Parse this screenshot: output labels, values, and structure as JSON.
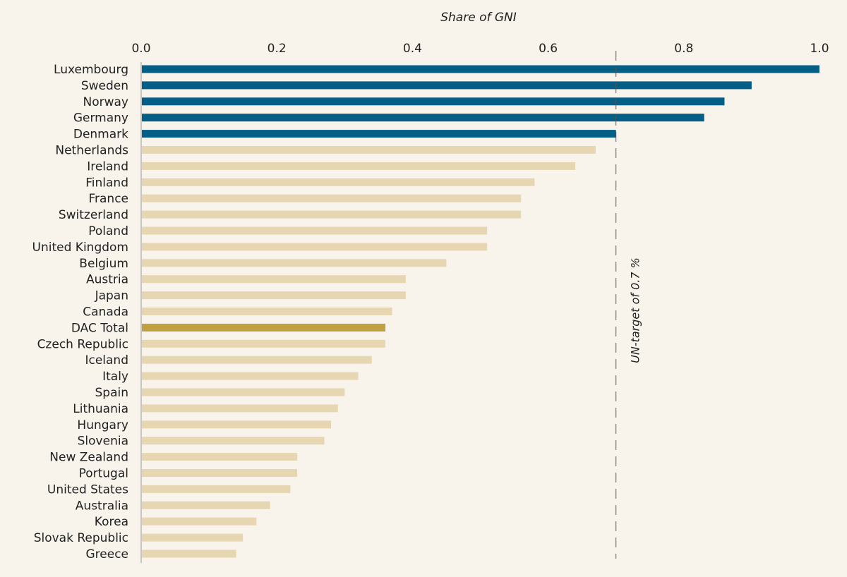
{
  "chart_data": {
    "type": "bar",
    "orientation": "horizontal",
    "title": "",
    "xlabel": "Share of GNI",
    "ylabel": "",
    "xlim": [
      0,
      1.0
    ],
    "xticks": [
      0.0,
      0.2,
      0.4,
      0.6,
      0.8,
      1.0
    ],
    "xtick_labels": [
      "0.0",
      "0.2",
      "0.4",
      "0.6",
      "0.8",
      "1.0"
    ],
    "xaxis_position": "top",
    "grid": false,
    "categories": [
      "Luxembourg",
      "Sweden",
      "Norway",
      "Germany",
      "Denmark",
      "Netherlands",
      "Ireland",
      "Finland",
      "France",
      "Switzerland",
      "Poland",
      "United Kingdom",
      "Belgium",
      "Austria",
      "Japan",
      "Canada",
      "DAC Total",
      "Czech Republic",
      "Iceland",
      "Italy",
      "Spain",
      "Lithuania",
      "Hungary",
      "Slovenia",
      "New Zealand",
      "Portugal",
      "United States",
      "Australia",
      "Korea",
      "Slovak Republic",
      "Greece"
    ],
    "values": [
      1.0,
      0.9,
      0.86,
      0.83,
      0.7,
      0.67,
      0.64,
      0.58,
      0.56,
      0.56,
      0.51,
      0.51,
      0.45,
      0.39,
      0.39,
      0.37,
      0.36,
      0.36,
      0.34,
      0.32,
      0.3,
      0.29,
      0.28,
      0.27,
      0.23,
      0.23,
      0.22,
      0.19,
      0.17,
      0.15,
      0.14
    ],
    "groups": [
      "above_target",
      "above_target",
      "above_target",
      "above_target",
      "above_target",
      "below_target",
      "below_target",
      "below_target",
      "below_target",
      "below_target",
      "below_target",
      "below_target",
      "below_target",
      "below_target",
      "below_target",
      "below_target",
      "dac_total",
      "below_target",
      "below_target",
      "below_target",
      "below_target",
      "below_target",
      "below_target",
      "below_target",
      "below_target",
      "below_target",
      "below_target",
      "below_target",
      "below_target",
      "below_target",
      "below_target"
    ],
    "colors": {
      "above_target": "#055e85",
      "below_target": "#e6d6b2",
      "dac_total": "#c0a042"
    },
    "reference_line": {
      "value": 0.7,
      "style": "dashed",
      "label": "UN-target of 0.7 %"
    }
  }
}
